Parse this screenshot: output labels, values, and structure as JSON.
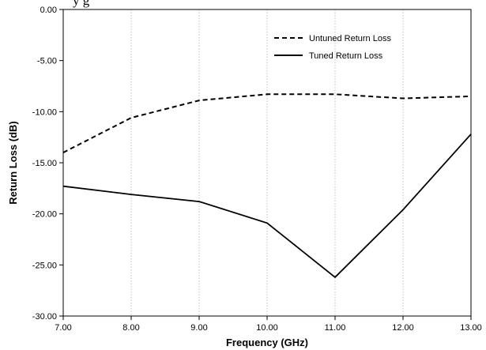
{
  "header_fragment": "y g",
  "chart_data": {
    "type": "line",
    "title": "",
    "xlabel": "Frequency (GHz)",
    "ylabel": "Return Loss (dB)",
    "xlim": [
      7,
      13
    ],
    "ylim": [
      -30,
      0
    ],
    "x_ticks": [
      7,
      8,
      9,
      10,
      11,
      12,
      13
    ],
    "y_ticks": [
      0,
      -5,
      -10,
      -15,
      -20,
      -25,
      -30
    ],
    "x_tick_labels": [
      "7.00",
      "8.00",
      "9.00",
      "10.00",
      "11.00",
      "12.00",
      "13.00"
    ],
    "y_tick_labels": [
      "0.00",
      "-5.00",
      "-10.00",
      "-15.00",
      "-20.00",
      "-25.00",
      "-30.00"
    ],
    "grid": true,
    "grid_axis": "x",
    "legend_position": "top-right",
    "series": [
      {
        "name": "Untuned Return Loss",
        "style": "dashed",
        "color": "#000000",
        "x": [
          7,
          8,
          9,
          10,
          11,
          12,
          13
        ],
        "y": [
          -14.0,
          -10.6,
          -8.9,
          -8.3,
          -8.3,
          -8.7,
          -8.5
        ]
      },
      {
        "name": "Tuned Return Loss",
        "style": "solid",
        "color": "#000000",
        "x": [
          7,
          8,
          9,
          10,
          11,
          12,
          13
        ],
        "y": [
          -17.3,
          -18.1,
          -18.8,
          -20.9,
          -26.2,
          -19.6,
          -12.2
        ]
      }
    ]
  }
}
